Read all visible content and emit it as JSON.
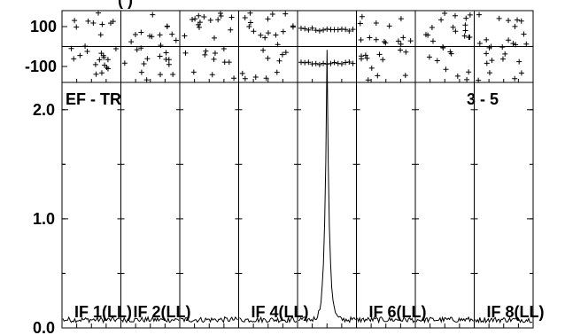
{
  "header": {
    "partial_title": "(               )"
  },
  "chart_data": {
    "type": "line",
    "title": "",
    "baseline_label": "EF - TR",
    "baseline_number": "3 - 5",
    "colors": {
      "line": "#000000",
      "background": "#ffffff"
    },
    "phase_panel": {
      "yticks": [
        {
          "value": 100,
          "label": "100"
        },
        {
          "value": -100,
          "label": "-100"
        }
      ],
      "ylim": [
        -180,
        180
      ],
      "marker": "+"
    },
    "amp_panel": {
      "yticks": [
        {
          "value": 0.0,
          "label": "0.0"
        },
        {
          "value": 1.0,
          "label": "1.0"
        },
        {
          "value": 2.0,
          "label": "2.0"
        }
      ],
      "ylim": [
        0,
        2.25
      ]
    },
    "subplots": [
      {
        "label": "IF 1(LL)",
        "peak": 0
      },
      {
        "label": "IF 2(LL)",
        "peak": 0
      },
      {
        "label": "",
        "peak": 0
      },
      {
        "label": "IF 4(LL)",
        "peak": 0
      },
      {
        "label": "",
        "peak": 2.45
      },
      {
        "label": "IF 6(LL)",
        "peak": 0
      },
      {
        "label": "",
        "peak": 0
      },
      {
        "label": "IF 8(LL)",
        "peak": 0
      }
    ],
    "grid": false,
    "legend": "none"
  }
}
